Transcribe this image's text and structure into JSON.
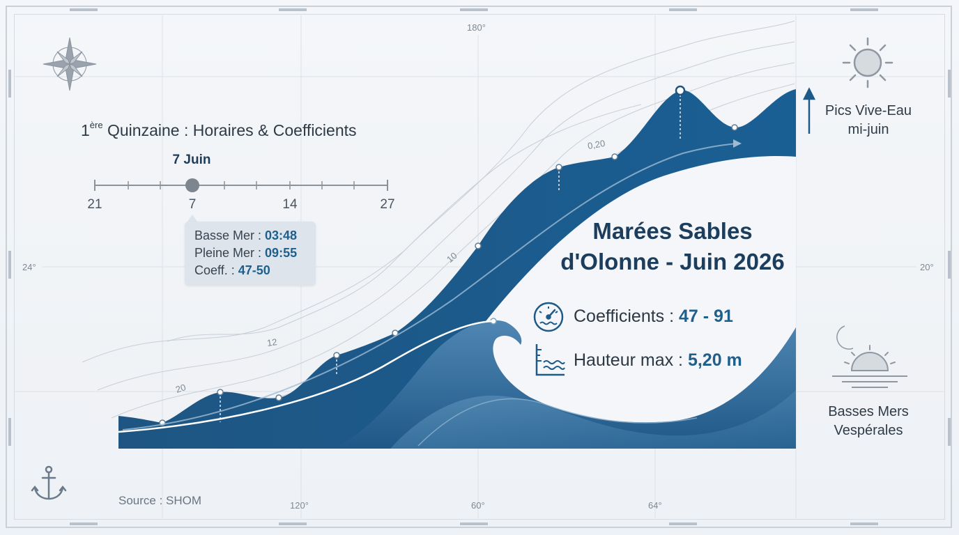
{
  "header": {
    "prefix": "1",
    "sup": "ère",
    "text": " Quinzaine : Horaires & Coefficients"
  },
  "timeline": {
    "selected_label": "7 Juin",
    "ticks": [
      "21",
      "7",
      "14",
      "27"
    ],
    "selected_index": 1
  },
  "tooltip": {
    "rows": [
      {
        "label": "Basse Mer : ",
        "value": "03:48"
      },
      {
        "label": "Pleine Mer : ",
        "value": "09:55"
      },
      {
        "label": "Coeff. : ",
        "value": "47-50"
      }
    ]
  },
  "title": {
    "line1": "Marées Sables",
    "line2": "d'Olonne - Juin 2026"
  },
  "stats": {
    "coef_label": "Coefficients : ",
    "coef_value": "47 - 91",
    "height_label": "Hauteur max : ",
    "height_value": "5,20 m"
  },
  "side": {
    "peak_line1": "Pics Vive-Eau",
    "peak_line2": "mi-juin",
    "low_line1": "Basses Mers",
    "low_line2": "Vespérales"
  },
  "map": {
    "deg_top": "180°",
    "deg_left": "24°",
    "deg_right": "20°",
    "deg_bottom_1": "120°",
    "deg_bottom_2": "60°",
    "deg_bottom_3": "64°",
    "contour_20": "20",
    "contour_12": "12",
    "contour_10": "10",
    "contour_020": "0,20"
  },
  "footer": {
    "source": "Source : SHOM"
  },
  "icons": [
    "compass-rose-icon",
    "anchor-icon",
    "gauge-icon",
    "water-level-icon",
    "sun-icon",
    "moon-icon",
    "sunset-icon",
    "arrow-up-icon"
  ],
  "colors": {
    "deep_blue": "#1c5a8a",
    "mid_blue": "#2f6f9e",
    "light_blue": "#6b9ec4",
    "title": "#1d3d5c",
    "accent_value": "#1f5f8c"
  }
}
